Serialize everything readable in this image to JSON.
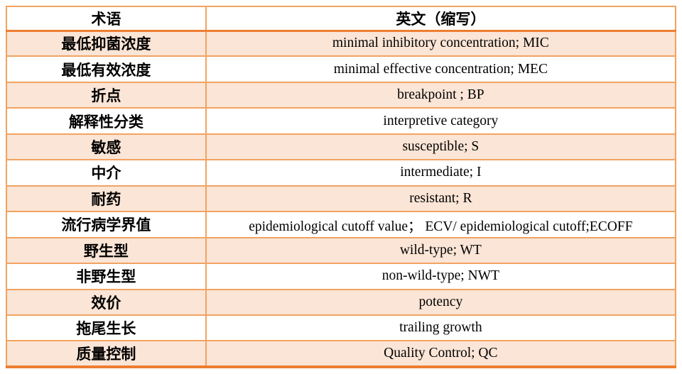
{
  "table": {
    "title": "antimicrobial-terminology-glossary",
    "columns": [
      {
        "label": "术语"
      },
      {
        "label": "英文（缩写）"
      }
    ],
    "rows": [
      {
        "term": "最低抑菌浓度",
        "english": "minimal inhibitory concentration; MIC"
      },
      {
        "term": "最低有效浓度",
        "english": "minimal effective concentration; MEC"
      },
      {
        "term": "折点",
        "english": "breakpoint ; BP"
      },
      {
        "term": "解释性分类",
        "english": "interpretive category"
      },
      {
        "term": "敏感",
        "english": "susceptible; S"
      },
      {
        "term": "中介",
        "english": "intermediate; I"
      },
      {
        "term": "耐药",
        "english": "resistant; R"
      },
      {
        "term": "流行病学界值",
        "english": "epidemiological cutoff value； ECV/ epidemiological cutoff;ECOFF"
      },
      {
        "term": "野生型",
        "english": "wild-type; WT"
      },
      {
        "term": "非野生型",
        "english": "non-wild-type; NWT"
      },
      {
        "term": "效价",
        "english": "potency"
      },
      {
        "term": "拖尾生长",
        "english": "trailing growth"
      },
      {
        "term": "质量控制",
        "english": "Quality Control; QC"
      }
    ],
    "colors": {
      "border_light": "#f2a361",
      "border_dark": "#ed7d31",
      "row_shade": "#fbe5d6",
      "row_plain": "#ffffff",
      "text": "#000000"
    }
  }
}
